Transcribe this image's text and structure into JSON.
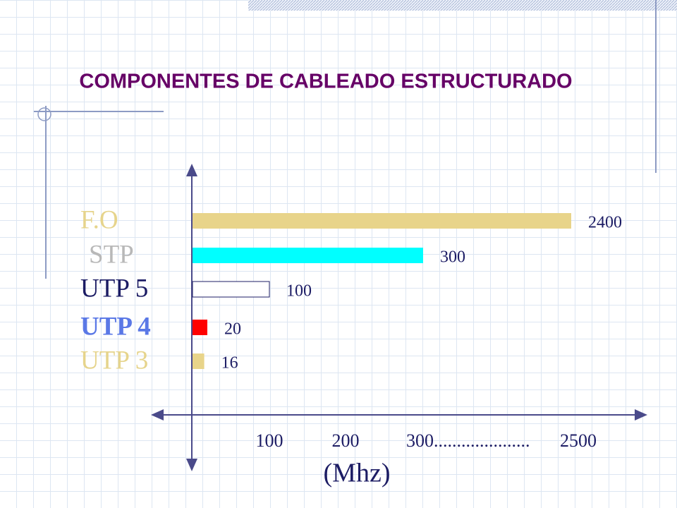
{
  "chart_data": {
    "type": "bar",
    "orientation": "horizontal",
    "title": "COMPONENTES DE CABLEADO ESTRUCTURADO",
    "categories": [
      "F.O",
      "STP",
      "UTP 5",
      "UTP 4",
      "UTP 3"
    ],
    "category_colors": [
      "#e6d48c",
      "#b8b8b8",
      "#1c1c64",
      "#5a78e6",
      "#e6d48c"
    ],
    "values": [
      2400,
      300,
      100,
      20,
      16
    ],
    "colors": [
      "#e8d48a",
      "#00ffff",
      "#ffffff",
      "#ff0000",
      "#e8d48a"
    ],
    "xlim": [
      0,
      2500
    ],
    "xticks": [
      100,
      200,
      {
        "value": 300,
        "label": "300....................."
      },
      2500
    ],
    "xlabel": "(Mhz)"
  }
}
